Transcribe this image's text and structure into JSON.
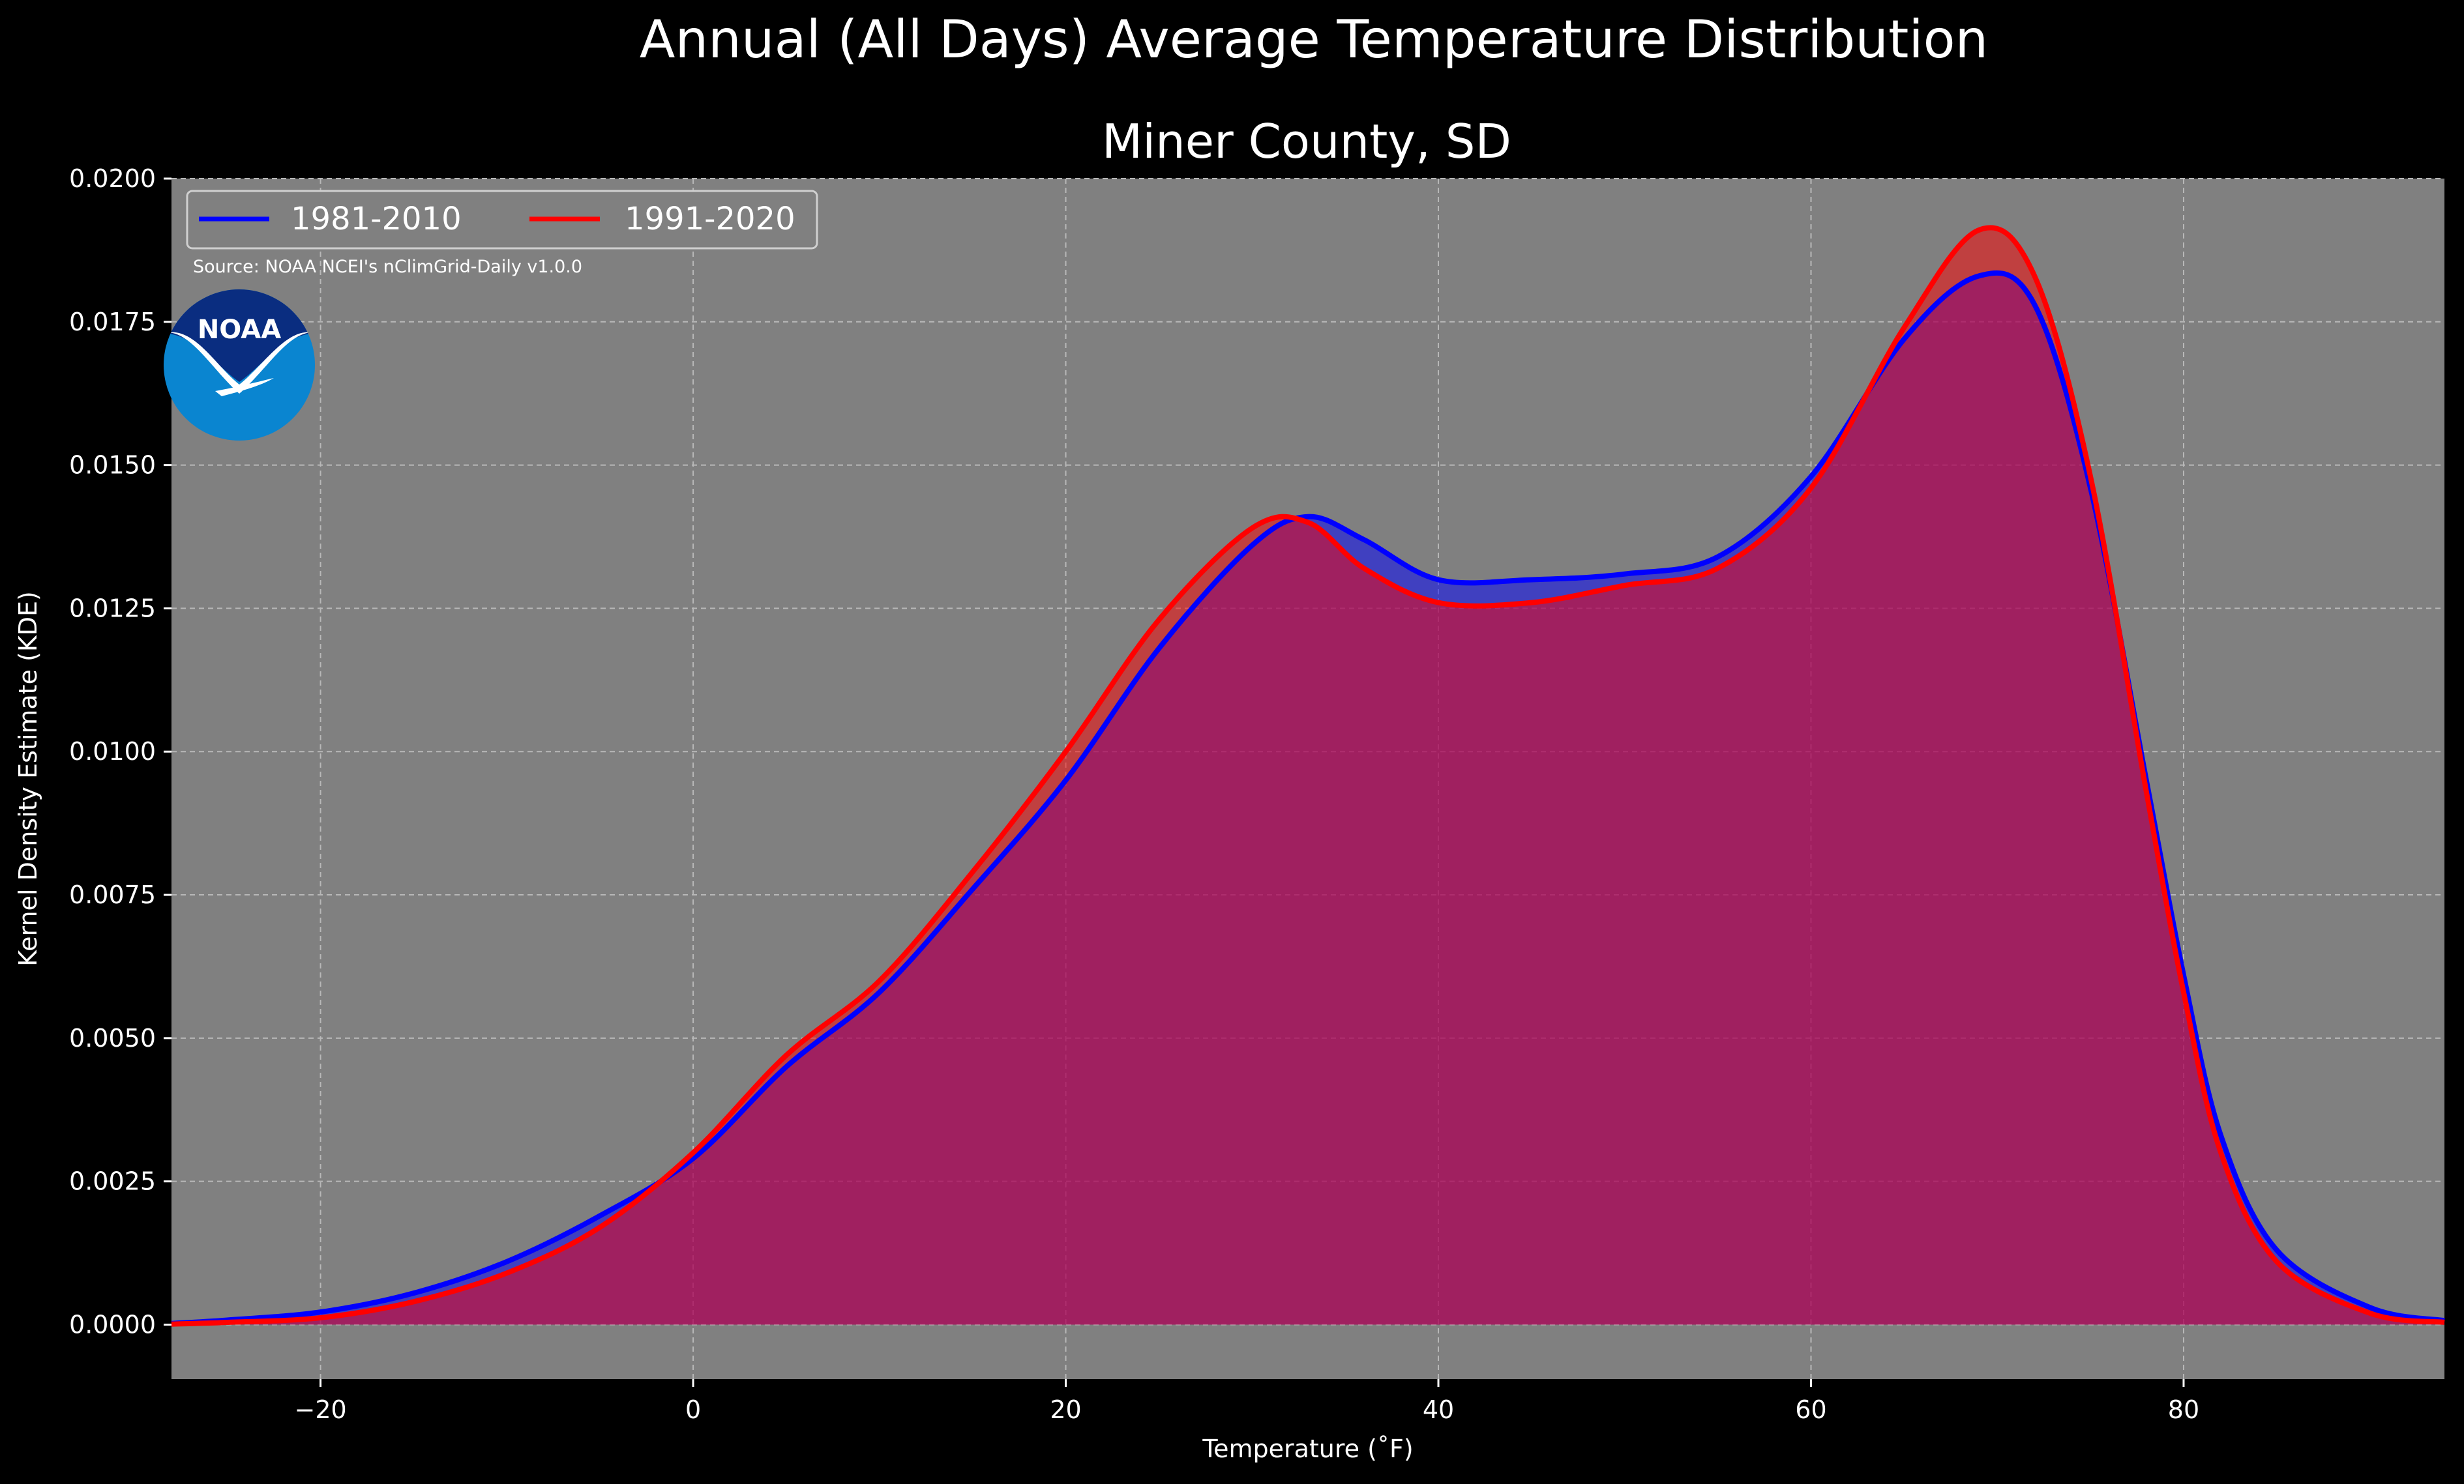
{
  "figure": {
    "suptitle": "Annual (All Days) Average Temperature Distribution",
    "title": "Miner County, SD",
    "source": "Source: NOAA NCEI's nClimGrid-Daily v1.0.0",
    "logo_text": "NOAA"
  },
  "colors": {
    "background": "#000000",
    "plot_bg": "#808080",
    "series_1981": "#0000ff",
    "series_1991": "#ff0000",
    "noaa_dark": "#0a2d80",
    "noaa_light": "#0a85d0"
  },
  "chart_data": {
    "type": "area",
    "xlabel": "Temperature (˚F)",
    "ylabel": "Kernel Density Estimate (KDE)",
    "xlim": [
      -28,
      94
    ],
    "ylim": [
      -0.00095,
      0.02
    ],
    "xticks": [
      -20,
      0,
      20,
      40,
      60,
      80
    ],
    "xtick_labels": [
      "−20",
      "0",
      "20",
      "40",
      "60",
      "80"
    ],
    "yticks": [
      0,
      0.0025,
      0.005,
      0.0075,
      0.01,
      0.0125,
      0.015,
      0.0175,
      0.02
    ],
    "ytick_labels": [
      "0.0000",
      "0.0025",
      "0.0050",
      "0.0075",
      "0.0100",
      "0.0125",
      "0.0150",
      "0.0175",
      "0.0200"
    ],
    "grid": true,
    "legend_position": "top-left",
    "x": [
      -28,
      -25,
      -20,
      -15,
      -10,
      -5,
      0,
      5,
      10,
      15,
      20,
      25,
      30,
      33,
      36,
      40,
      45,
      50,
      55,
      60,
      65,
      69,
      72,
      75,
      78,
      80,
      82,
      85,
      90,
      94
    ],
    "series": [
      {
        "name": "1981-2010",
        "color": "#0000ff",
        "values": [
          2e-05,
          8e-05,
          0.00022,
          0.00055,
          0.0011,
          0.0019,
          0.0029,
          0.0045,
          0.0058,
          0.0076,
          0.0095,
          0.0118,
          0.0136,
          0.0141,
          0.0137,
          0.013,
          0.013,
          0.0131,
          0.0134,
          0.0148,
          0.0172,
          0.0183,
          0.0178,
          0.0146,
          0.0095,
          0.0061,
          0.0033,
          0.0013,
          0.0003,
          7e-05
        ]
      },
      {
        "name": "1991-2020",
        "color": "#ff0000",
        "values": [
          1e-05,
          4e-05,
          0.00012,
          0.0004,
          0.0009,
          0.0017,
          0.003,
          0.0047,
          0.006,
          0.0079,
          0.01,
          0.0123,
          0.0139,
          0.014,
          0.0132,
          0.0126,
          0.0126,
          0.0129,
          0.0132,
          0.0146,
          0.0174,
          0.0191,
          0.0183,
          0.0148,
          0.0093,
          0.0058,
          0.003,
          0.0011,
          0.0002,
          4e-05
        ]
      }
    ]
  }
}
